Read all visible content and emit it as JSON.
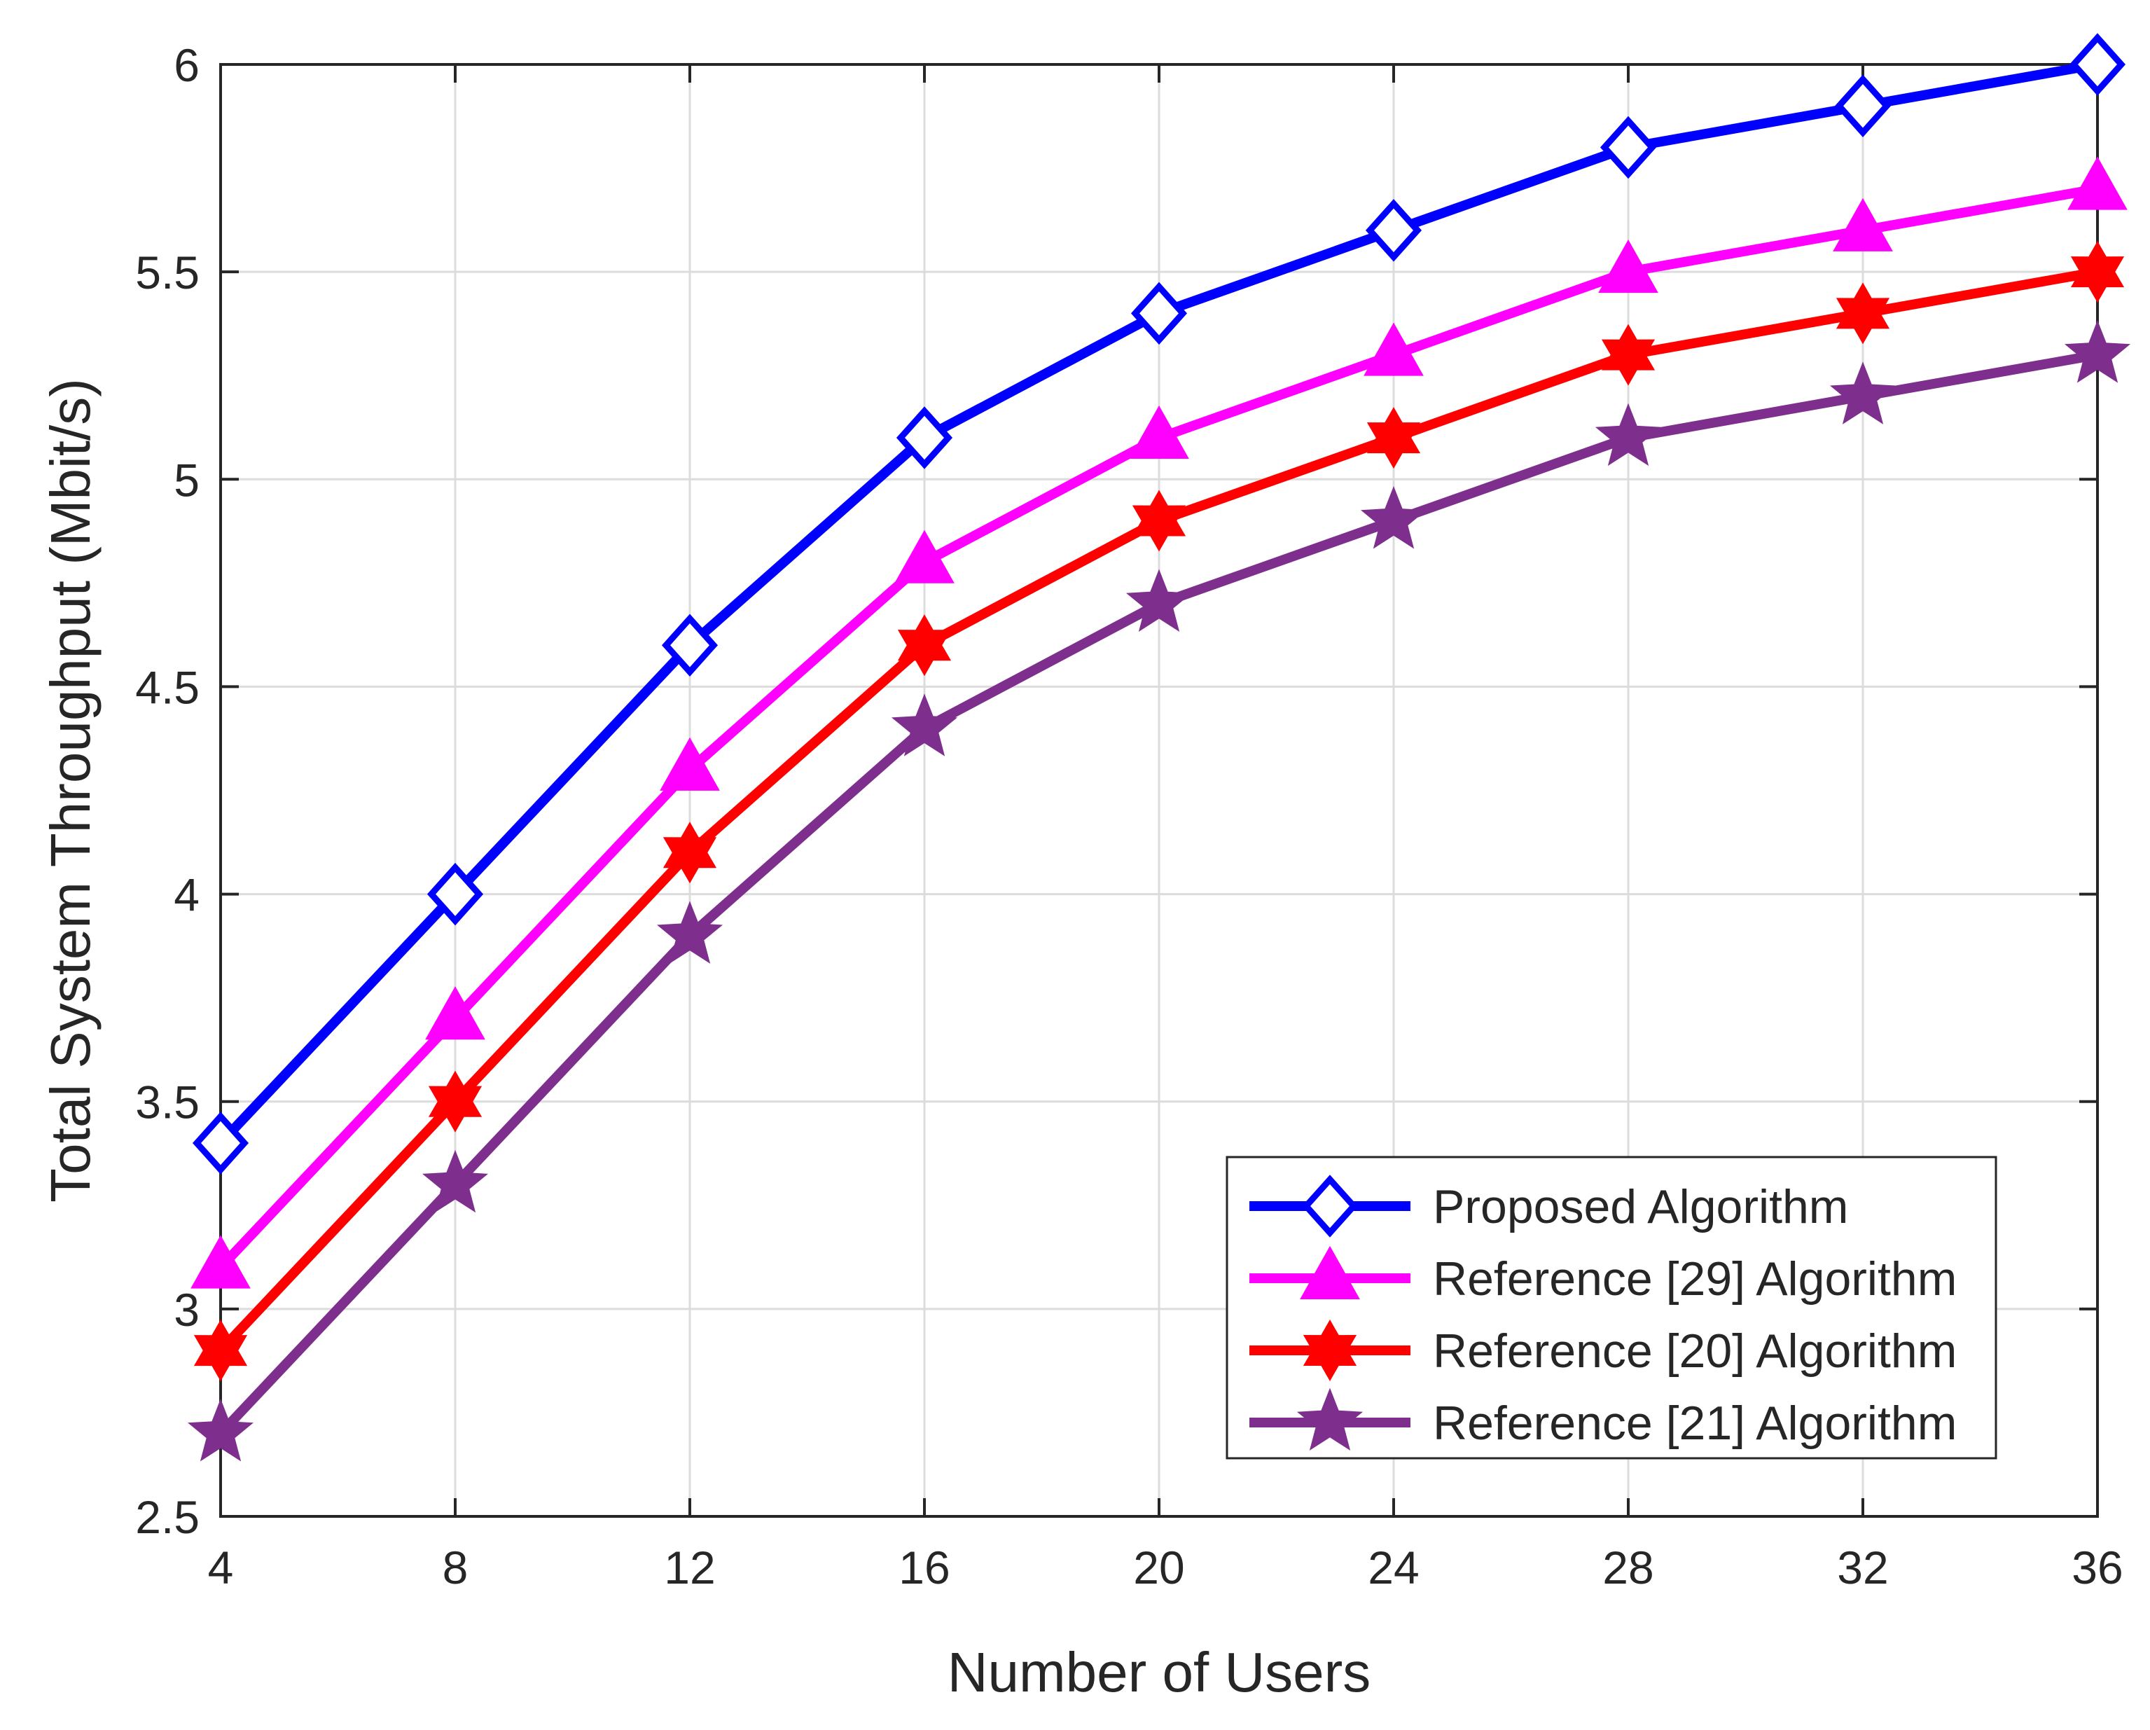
{
  "chart_data": {
    "type": "line",
    "xlabel": "Number of Users",
    "ylabel": "Total System Throughput (Mbit/s)",
    "x": [
      4,
      8,
      12,
      16,
      20,
      24,
      28,
      32,
      36
    ],
    "xlim": [
      4,
      36
    ],
    "ylim": [
      2.5,
      6
    ],
    "xticks": [
      4,
      8,
      12,
      16,
      20,
      24,
      28,
      32,
      36
    ],
    "yticks": [
      2.5,
      3,
      3.5,
      4,
      4.5,
      5,
      5.5,
      6
    ],
    "grid": true,
    "legend_position": "bottom-right",
    "series": [
      {
        "name": "Proposed Algorithm",
        "marker": "diamond",
        "color": "#0000ff",
        "values": [
          3.4,
          4.0,
          4.6,
          5.1,
          5.4,
          5.6,
          5.8,
          5.9,
          6.0
        ]
      },
      {
        "name": "Reference [29] Algorithm",
        "marker": "triangle",
        "color": "#ff00ff",
        "values": [
          3.1,
          3.7,
          4.3,
          4.8,
          5.1,
          5.3,
          5.5,
          5.6,
          5.7
        ]
      },
      {
        "name": "Reference [20] Algorithm",
        "marker": "hexagram",
        "color": "#ff0000",
        "values": [
          2.9,
          3.5,
          4.1,
          4.6,
          4.9,
          5.1,
          5.3,
          5.4,
          5.5
        ]
      },
      {
        "name": "Reference [21] Algorithm",
        "marker": "pentagram",
        "color": "#7e2f8e",
        "values": [
          2.7,
          3.3,
          3.9,
          4.4,
          4.7,
          4.9,
          5.1,
          5.2,
          5.3
        ]
      }
    ]
  }
}
